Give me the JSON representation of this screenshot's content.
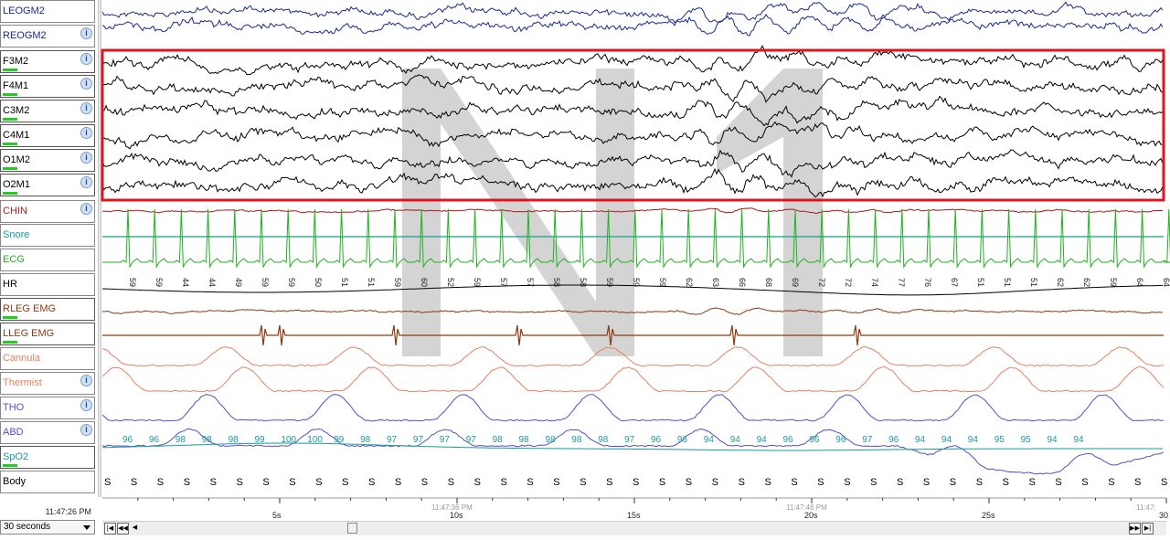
{
  "channels": [
    {
      "label": "LEOGM2",
      "color": "#1a2a8c",
      "info": false,
      "bar": false
    },
    {
      "label": "REOGM2",
      "color": "#1a2a8c",
      "info": true,
      "bar": false
    },
    {
      "label": "F3M2",
      "color": "#000000",
      "info": true,
      "bar": true
    },
    {
      "label": "F4M1",
      "color": "#000000",
      "info": true,
      "bar": true
    },
    {
      "label": "C3M2",
      "color": "#000000",
      "info": true,
      "bar": true
    },
    {
      "label": "C4M1",
      "color": "#000000",
      "info": true,
      "bar": true
    },
    {
      "label": "O1M2",
      "color": "#000000",
      "info": true,
      "bar": true
    },
    {
      "label": "O2M1",
      "color": "#000000",
      "info": true,
      "bar": true
    },
    {
      "label": "CHIN",
      "color": "#b01818",
      "info": true,
      "bar": false
    },
    {
      "label": "Snore",
      "color": "#1a9a9a",
      "info": false,
      "bar": false
    },
    {
      "label": "ECG",
      "color": "#22b022",
      "info": false,
      "bar": false
    },
    {
      "label": "HR",
      "color": "#000000",
      "info": false,
      "bar": false
    },
    {
      "label": "RLEG EMG",
      "color": "#8a3a10",
      "info": false,
      "bar": true
    },
    {
      "label": "LLEG EMG",
      "color": "#8a3a10",
      "info": false,
      "bar": true
    },
    {
      "label": "Cannula",
      "color": "#e88060",
      "info": false,
      "bar": false
    },
    {
      "label": "Thermist",
      "color": "#e88060",
      "info": true,
      "bar": false
    },
    {
      "label": "THO",
      "color": "#5050c8",
      "info": true,
      "bar": false
    },
    {
      "label": "ABD",
      "color": "#5050c8",
      "info": true,
      "bar": false
    },
    {
      "label": "SpO2",
      "color": "#1a9a9a",
      "info": false,
      "bar": true
    },
    {
      "label": "Body",
      "color": "#000000",
      "info": false,
      "bar": false
    }
  ],
  "stage_watermark": "N1",
  "hr_values": [
    "59",
    "59",
    "44",
    "44",
    "49",
    "59",
    "59",
    "50",
    "51",
    "51",
    "59",
    "60",
    "52",
    "59",
    "57",
    "57",
    "58",
    "58",
    "59",
    "59",
    "59",
    "62",
    "63",
    "66",
    "68",
    "69",
    "72",
    "72",
    "74",
    "77",
    "76",
    "67",
    "51",
    "51",
    "51",
    "62",
    "62",
    "59",
    "64",
    "64"
  ],
  "spo2_values": [
    "96",
    "96",
    "98",
    "98",
    "98",
    "99",
    "100",
    "100",
    "99",
    "98",
    "97",
    "97",
    "97",
    "97",
    "98",
    "98",
    "98",
    "98",
    "98",
    "97",
    "96",
    "96",
    "94",
    "94",
    "94",
    "96",
    "96",
    "96",
    "97",
    "96",
    "94",
    "94",
    "94",
    "95",
    "95",
    "94",
    "94"
  ],
  "body_position": "S",
  "body_count": 41,
  "time_ticks": {
    "seconds": [
      "5s",
      "10s",
      "15s",
      "20s",
      "25s",
      "30"
    ],
    "clock": [
      "11:47:36 PM",
      "11:47:46 PM",
      "11:47:"
    ]
  },
  "start_time": "11:47:26 PM",
  "epoch_length": "30 seconds",
  "colors": {
    "highlight_box": "#e0141e",
    "watermark": "#d4d4d4"
  }
}
